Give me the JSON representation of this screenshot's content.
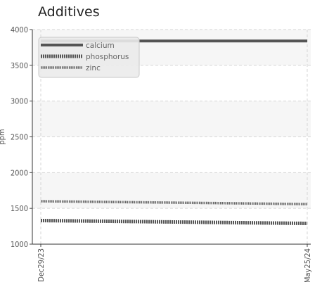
{
  "chart_data": {
    "type": "line",
    "title": "Additives",
    "xlabel": "",
    "ylabel": "ppm",
    "ylim": [
      1000,
      4000
    ],
    "yticks": [
      "4000",
      "3500",
      "3000",
      "2500",
      "2000",
      "1500",
      "1000"
    ],
    "xticks": [
      "Dec29/23",
      "May25/24"
    ],
    "legend_position": "top-left",
    "grid": true,
    "x": [
      "Dec29/23",
      "May25/24"
    ],
    "series": [
      {
        "name": "calcium",
        "values": [
          3840,
          3840
        ],
        "color": "#555555",
        "style": "solid"
      },
      {
        "name": "phosphorus",
        "values": [
          1330,
          1290
        ],
        "color": "#555555",
        "style": "dense-dotted"
      },
      {
        "name": "zinc",
        "values": [
          1600,
          1560
        ],
        "color": "#666666",
        "style": "dotted"
      }
    ]
  }
}
